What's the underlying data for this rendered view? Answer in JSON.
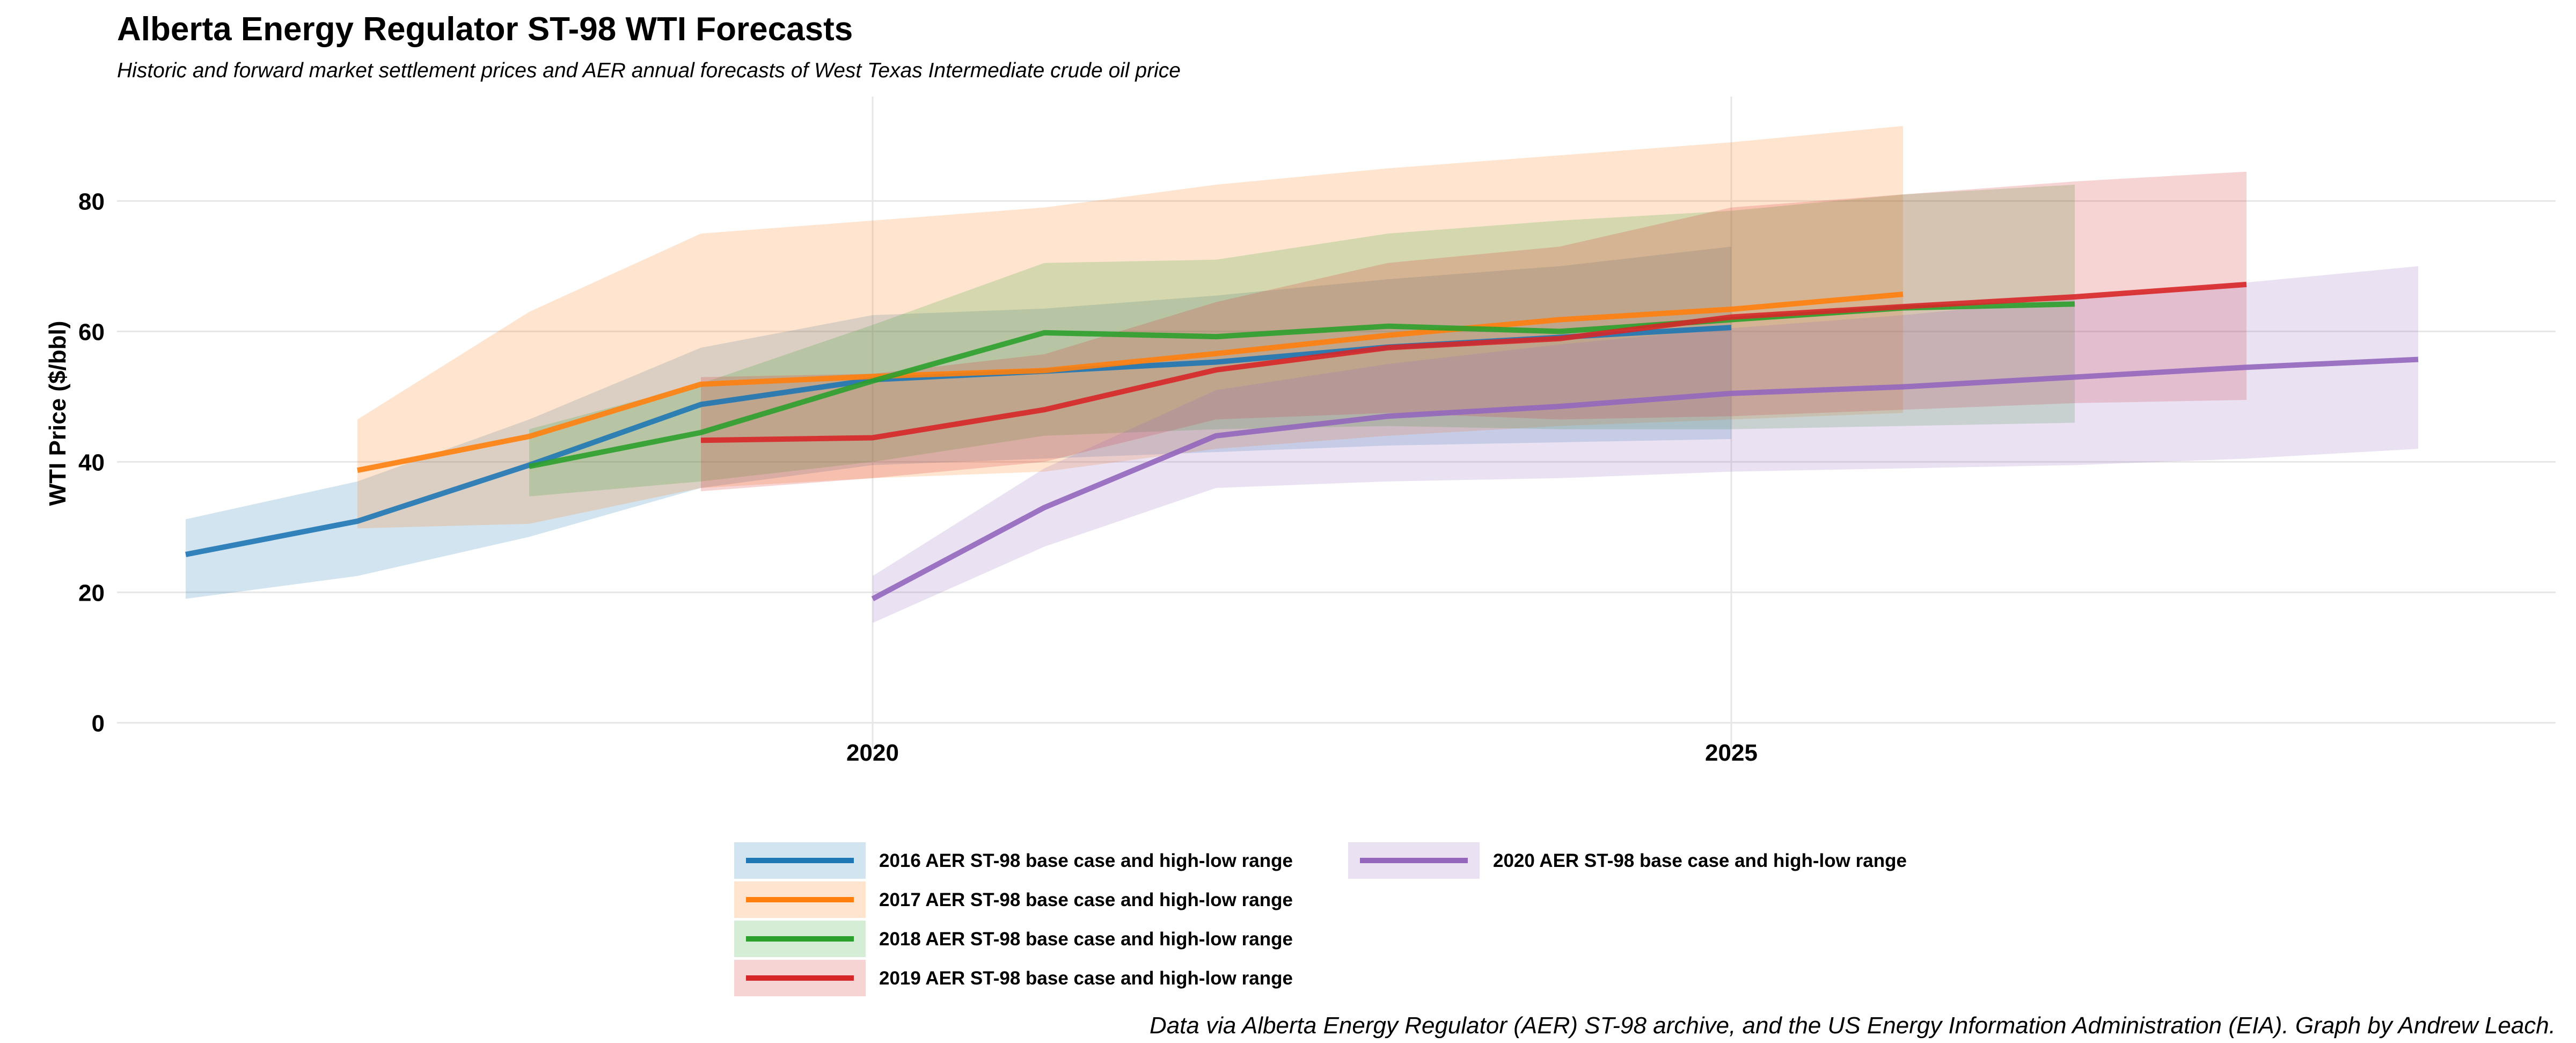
{
  "chart_data": {
    "type": "line",
    "title": "Alberta Energy Regulator ST-98 WTI Forecasts",
    "subtitle": "Historic and forward market settlement prices and AER annual forecasts of West Texas Intermediate crude oil price",
    "xlabel": "",
    "ylabel": "WTI Price ($/bbl)",
    "caption": "Data via Alberta Energy Regulator (AER) ST-98 archive, and the US Energy Information Administration (EIA). Graph by Andrew Leach.",
    "xlim": [
      2015.6,
      2029.8
    ],
    "ylim": [
      -4,
      96
    ],
    "x_ticks": [
      2020,
      2025
    ],
    "y_ticks": [
      0,
      20,
      40,
      60,
      80
    ],
    "grid": true,
    "legend_position": "bottom",
    "series": [
      {
        "name": "2016 AER ST-98 base case and high-low range",
        "color": "#1f77b4",
        "x": [
          2016,
          2017,
          2018,
          2019,
          2020,
          2021,
          2022,
          2023,
          2024,
          2025
        ],
        "base": [
          25.8,
          30.9,
          39.5,
          48.8,
          52.6,
          53.9,
          55.3,
          57.6,
          59.1,
          60.6
        ],
        "low": [
          19.0,
          22.5,
          28.5,
          36.0,
          39.5,
          40.5,
          41.5,
          42.5,
          43.0,
          43.5
        ],
        "high": [
          31.2,
          37.0,
          46.5,
          57.5,
          62.5,
          63.5,
          65.5,
          68.0,
          70.0,
          73.0
        ]
      },
      {
        "name": "2017 AER ST-98 base case and high-low range",
        "color": "#ff7f0e",
        "x": [
          2017,
          2018,
          2019,
          2020,
          2021,
          2022,
          2023,
          2024,
          2025,
          2026
        ],
        "base": [
          38.7,
          43.9,
          51.9,
          53.1,
          54.0,
          56.6,
          59.4,
          61.8,
          63.4,
          65.7
        ],
        "low": [
          29.8,
          30.5,
          36.0,
          37.5,
          38.5,
          42.0,
          44.0,
          45.5,
          46.5,
          47.5
        ],
        "high": [
          46.5,
          63.0,
          75.0,
          77.0,
          79.0,
          82.5,
          85.0,
          87.0,
          89.0,
          91.5
        ]
      },
      {
        "name": "2018 AER ST-98 base case and high-low range",
        "color": "#2ca02c",
        "x": [
          2018,
          2019,
          2020,
          2021,
          2022,
          2023,
          2024,
          2025,
          2026,
          2027
        ],
        "base": [
          39.3,
          44.5,
          52.4,
          59.8,
          59.2,
          60.8,
          60.0,
          61.8,
          63.6,
          64.2
        ],
        "low": [
          34.7,
          37.0,
          40.0,
          44.0,
          45.0,
          45.5,
          45.0,
          45.0,
          45.5,
          46.0
        ],
        "high": [
          45.0,
          52.0,
          61.0,
          70.5,
          71.0,
          75.0,
          77.0,
          78.5,
          81.0,
          82.5
        ]
      },
      {
        "name": "2019 AER ST-98 base case and high-low range",
        "color": "#d62728",
        "x": [
          2019,
          2020,
          2021,
          2022,
          2023,
          2024,
          2025,
          2026,
          2027,
          2028
        ],
        "base": [
          43.3,
          43.7,
          48.0,
          54.1,
          57.5,
          58.9,
          62.2,
          63.8,
          65.3,
          67.2
        ],
        "low": [
          35.5,
          37.5,
          40.0,
          46.5,
          47.5,
          46.5,
          47.0,
          48.0,
          49.0,
          49.5
        ],
        "high": [
          53.0,
          53.5,
          56.5,
          64.5,
          70.5,
          73.0,
          79.0,
          81.0,
          83.0,
          84.5
        ]
      },
      {
        "name": "2020 AER ST-98 base case and high-low range",
        "color": "#9467bd",
        "x": [
          2020,
          2021,
          2022,
          2023,
          2024,
          2025,
          2026,
          2027,
          2028,
          2029
        ],
        "base": [
          19.0,
          33.0,
          44.0,
          47.0,
          48.5,
          50.5,
          51.5,
          53.0,
          54.5,
          55.7
        ],
        "low": [
          15.3,
          27.0,
          36.0,
          37.0,
          37.5,
          38.5,
          39.0,
          39.5,
          40.5,
          42.0
        ],
        "high": [
          22.5,
          39.0,
          51.0,
          55.0,
          58.0,
          60.5,
          62.5,
          65.0,
          67.5,
          70.0
        ]
      }
    ]
  }
}
